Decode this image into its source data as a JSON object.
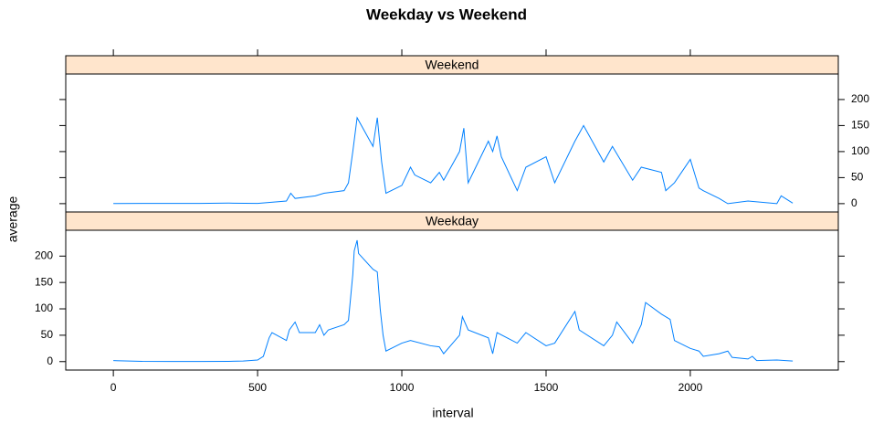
{
  "chart_data": {
    "type": "line",
    "title": "Weekday vs Weekend",
    "xlabel": "interval",
    "ylabel": "average",
    "xlim": [
      -165,
      2513
    ],
    "xticks": [
      0,
      500,
      1000,
      1500,
      2000
    ],
    "ylim": [
      -16,
      249
    ],
    "yticks": [
      0,
      50,
      100,
      150,
      200
    ],
    "series": [
      {
        "name": "Weekend",
        "color": "#0080ff",
        "x": [
          0,
          100,
          300,
          400,
          500,
          600,
          615,
          630,
          700,
          730,
          800,
          815,
          830,
          845,
          900,
          915,
          930,
          945,
          1000,
          1030,
          1045,
          1100,
          1130,
          1145,
          1200,
          1215,
          1230,
          1300,
          1315,
          1330,
          1345,
          1400,
          1430,
          1500,
          1530,
          1600,
          1630,
          1700,
          1730,
          1800,
          1830,
          1900,
          1915,
          1945,
          2000,
          2030,
          2045,
          2100,
          2130,
          2200,
          2300,
          2315,
          2355
        ],
        "values": [
          0.2,
          0.5,
          0.5,
          1,
          0.5,
          5,
          20,
          10,
          15,
          20,
          25,
          40,
          100,
          165,
          110,
          165,
          80,
          20,
          35,
          70,
          55,
          40,
          60,
          45,
          100,
          145,
          40,
          120,
          100,
          130,
          90,
          25,
          70,
          90,
          40,
          120,
          150,
          80,
          110,
          45,
          70,
          60,
          25,
          40,
          85,
          30,
          25,
          10,
          0,
          5,
          0,
          15,
          1
        ]
      },
      {
        "name": "Weekday",
        "color": "#0080ff",
        "x": [
          0,
          100,
          200,
          300,
          400,
          450,
          500,
          520,
          540,
          550,
          600,
          610,
          630,
          645,
          700,
          715,
          730,
          745,
          800,
          815,
          830,
          835,
          845,
          850,
          900,
          915,
          925,
          935,
          945,
          1000,
          1030,
          1100,
          1130,
          1145,
          1200,
          1210,
          1230,
          1300,
          1315,
          1330,
          1400,
          1430,
          1500,
          1530,
          1600,
          1615,
          1700,
          1730,
          1745,
          1800,
          1830,
          1845,
          1900,
          1930,
          1945,
          2000,
          2030,
          2045,
          2100,
          2130,
          2145,
          2200,
          2215,
          2230,
          2300,
          2355
        ],
        "values": [
          2,
          0.5,
          0.3,
          0.2,
          0.5,
          1,
          3,
          10,
          45,
          55,
          40,
          60,
          75,
          55,
          55,
          70,
          50,
          60,
          70,
          78,
          165,
          210,
          230,
          205,
          175,
          170,
          100,
          50,
          20,
          35,
          40,
          30,
          28,
          15,
          50,
          85,
          60,
          45,
          15,
          55,
          35,
          55,
          30,
          35,
          95,
          60,
          30,
          50,
          75,
          35,
          70,
          112,
          90,
          80,
          40,
          25,
          20,
          10,
          15,
          20,
          8,
          5,
          10,
          2,
          3,
          1
        ]
      }
    ]
  }
}
